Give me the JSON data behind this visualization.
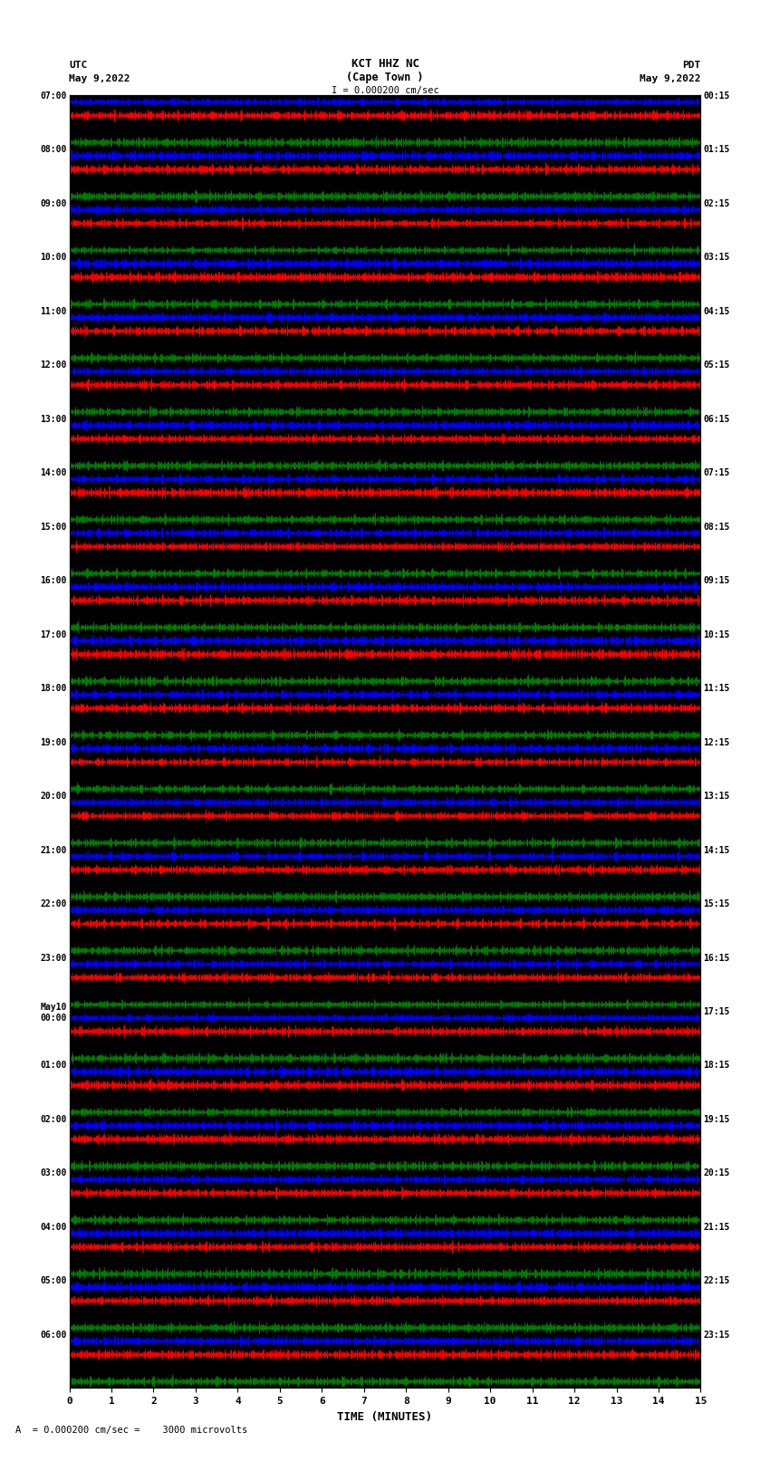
{
  "title_line1": "KCT HHZ NC",
  "title_line2": "(Cape Town )",
  "scale_label": "I = 0.000200 cm/sec",
  "left_label_top": "UTC",
  "left_label_date": "May 9,2022",
  "right_label_top": "PDT",
  "right_label_date": "May 9,2022",
  "bottom_label": "TIME (MINUTES)",
  "bottom_note": "A  = 0.000200 cm/sec =    3000 microvolts",
  "utc_times": [
    "07:00",
    "08:00",
    "09:00",
    "10:00",
    "11:00",
    "12:00",
    "13:00",
    "14:00",
    "15:00",
    "16:00",
    "17:00",
    "18:00",
    "19:00",
    "20:00",
    "21:00",
    "22:00",
    "23:00",
    "May10\n00:00",
    "01:00",
    "02:00",
    "03:00",
    "04:00",
    "05:00",
    "06:00"
  ],
  "pdt_times": [
    "00:15",
    "01:15",
    "02:15",
    "03:15",
    "04:15",
    "05:15",
    "06:15",
    "07:15",
    "08:15",
    "09:15",
    "10:15",
    "11:15",
    "12:15",
    "13:15",
    "14:15",
    "15:15",
    "16:15",
    "17:15",
    "18:15",
    "19:15",
    "20:15",
    "21:15",
    "22:15",
    "23:15"
  ],
  "n_rows": 24,
  "x_min": 0,
  "x_max": 15,
  "x_ticks": [
    0,
    1,
    2,
    3,
    4,
    5,
    6,
    7,
    8,
    9,
    10,
    11,
    12,
    13,
    14,
    15
  ],
  "sub_colors": [
    "blue",
    "red",
    "black",
    "green"
  ],
  "bg_color": "white",
  "figsize": [
    8.5,
    16.13
  ],
  "dpi": 100,
  "font_family": "monospace"
}
